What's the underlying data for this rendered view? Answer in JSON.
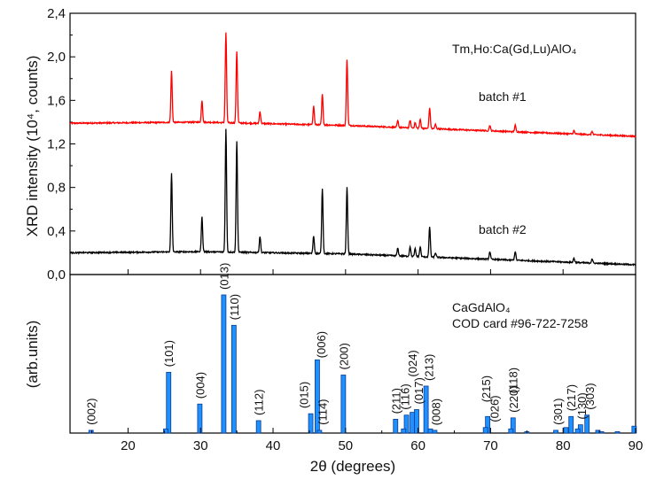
{
  "chart_data": {
    "type": "line",
    "x_axis": {
      "label": "2θ (degrees)",
      "range": [
        12,
        90
      ],
      "ticks": [
        20,
        30,
        40,
        50,
        60,
        70,
        80,
        90
      ],
      "tick_labels": [
        "20",
        "30",
        "40",
        "50",
        "60",
        "70",
        "80",
        "90"
      ]
    },
    "top_panel": {
      "ylabel": "XRD intensity (10⁴, counts)",
      "ylim": [
        0,
        2.4
      ],
      "y_ticks": [
        0.0,
        0.4,
        0.8,
        1.2,
        1.6,
        2.0,
        2.4
      ],
      "y_tick_labels": [
        "0,0",
        "0,4",
        "0,8",
        "1,2",
        "1,6",
        "2,0",
        "2,4"
      ],
      "title_annotation": "Tm,Ho:Ca(Gd,Lu)AlO₄",
      "series": [
        {
          "name": "batch #1",
          "color": "#ff0000",
          "baseline": [
            [
              12,
              1.39
            ],
            [
              30,
              1.4
            ],
            [
              50,
              1.37
            ],
            [
              70,
              1.32
            ],
            [
              90,
              1.27
            ]
          ],
          "peaks": [
            [
              26.0,
              0.47
            ],
            [
              30.2,
              0.2
            ],
            [
              33.5,
              0.83
            ],
            [
              35.0,
              0.66
            ],
            [
              38.2,
              0.11
            ],
            [
              45.6,
              0.17
            ],
            [
              46.8,
              0.28
            ],
            [
              50.2,
              0.61
            ],
            [
              57.2,
              0.06
            ],
            [
              58.9,
              0.07
            ],
            [
              59.6,
              0.05
            ],
            [
              60.3,
              0.08
            ],
            [
              61.6,
              0.19
            ],
            [
              62.4,
              0.04
            ],
            [
              69.9,
              0.05
            ],
            [
              73.4,
              0.06
            ],
            [
              81.5,
              0.03
            ],
            [
              84.0,
              0.03
            ]
          ]
        },
        {
          "name": "batch #2",
          "color": "#000000",
          "baseline": [
            [
              12,
              0.2
            ],
            [
              30,
              0.21
            ],
            [
              50,
              0.19
            ],
            [
              70,
              0.14
            ],
            [
              90,
              0.09
            ]
          ],
          "peaks": [
            [
              26.0,
              0.72
            ],
            [
              30.2,
              0.32
            ],
            [
              33.5,
              1.13
            ],
            [
              35.0,
              1.02
            ],
            [
              38.2,
              0.15
            ],
            [
              45.6,
              0.16
            ],
            [
              46.8,
              0.6
            ],
            [
              50.2,
              0.61
            ],
            [
              57.2,
              0.07
            ],
            [
              58.9,
              0.09
            ],
            [
              59.6,
              0.07
            ],
            [
              60.3,
              0.09
            ],
            [
              61.6,
              0.28
            ],
            [
              62.4,
              0.04
            ],
            [
              69.9,
              0.07
            ],
            [
              73.4,
              0.08
            ],
            [
              81.5,
              0.04
            ],
            [
              84.0,
              0.04
            ]
          ]
        }
      ]
    },
    "bottom_panel": {
      "ylabel": "(arb.units)",
      "annotation_line1": "CaGdAlO₄",
      "annotation_line2": "COD card #96-722-7258",
      "bar_color": "#1e90ff",
      "bars": [
        {
          "x": 14.9,
          "v": 0.02,
          "hkl": "(002)"
        },
        {
          "x": 25.6,
          "v": 0.44,
          "hkl": "(101)"
        },
        {
          "x": 29.9,
          "v": 0.21,
          "hkl": "(004)"
        },
        {
          "x": 33.2,
          "v": 1.0,
          "hkl": "(013)"
        },
        {
          "x": 34.6,
          "v": 0.78,
          "hkl": "(110)"
        },
        {
          "x": 38.0,
          "v": 0.09,
          "hkl": "(112)"
        },
        {
          "x": 45.2,
          "v": 0.14,
          "hkl": "(015)"
        },
        {
          "x": 46.1,
          "v": 0.53,
          "hkl": "(006)"
        },
        {
          "x": 46.4,
          "v": 0.02,
          "hkl": "(114)"
        },
        {
          "x": 49.7,
          "v": 0.42,
          "hkl": "(200)"
        },
        {
          "x": 56.9,
          "v": 0.1,
          "hkl": "(211)"
        },
        {
          "x": 58.4,
          "v": 0.13,
          "hkl": "(116)"
        },
        {
          "x": 59.2,
          "v": 0.15,
          "hkl": "(024)"
        },
        {
          "x": 59.8,
          "v": 0.17,
          "hkl": "(017)"
        },
        {
          "x": 61.1,
          "v": 0.34,
          "hkl": "(213)"
        },
        {
          "x": 61.7,
          "v": 0.03,
          "hkl": "(008)"
        },
        {
          "x": 69.6,
          "v": 0.12,
          "hkl": "(215)"
        },
        {
          "x": 69.3,
          "v": 0.04,
          "hkl": "(026)"
        },
        {
          "x": 73.1,
          "v": 0.11,
          "hkl": "(220)"
        },
        {
          "x": 72.8,
          "v": 0.03,
          "hkl": "(118)"
        },
        {
          "x": 79.0,
          "v": 0.02,
          "hkl": "(301)"
        },
        {
          "x": 81.1,
          "v": 0.12,
          "hkl": "(217)"
        },
        {
          "x": 82.4,
          "v": 0.06,
          "hkl": "(130)"
        },
        {
          "x": 83.3,
          "v": 0.13,
          "hkl": "(303)"
        },
        {
          "x": 89.8,
          "v": 0.05,
          "hkl": ""
        }
      ],
      "extra_bars": [
        {
          "x": 80.4,
          "v": 0.04
        },
        {
          "x": 82.0,
          "v": 0.03
        },
        {
          "x": 84.8,
          "v": 0.02
        },
        {
          "x": 85.3,
          "v": 0.01
        },
        {
          "x": 87.5,
          "v": 0.01
        },
        {
          "x": 58.0,
          "v": 0.03
        },
        {
          "x": 62.3,
          "v": 0.02
        },
        {
          "x": 75.0,
          "v": 0.01
        },
        {
          "x": 25.2,
          "v": 0.03
        }
      ]
    }
  }
}
